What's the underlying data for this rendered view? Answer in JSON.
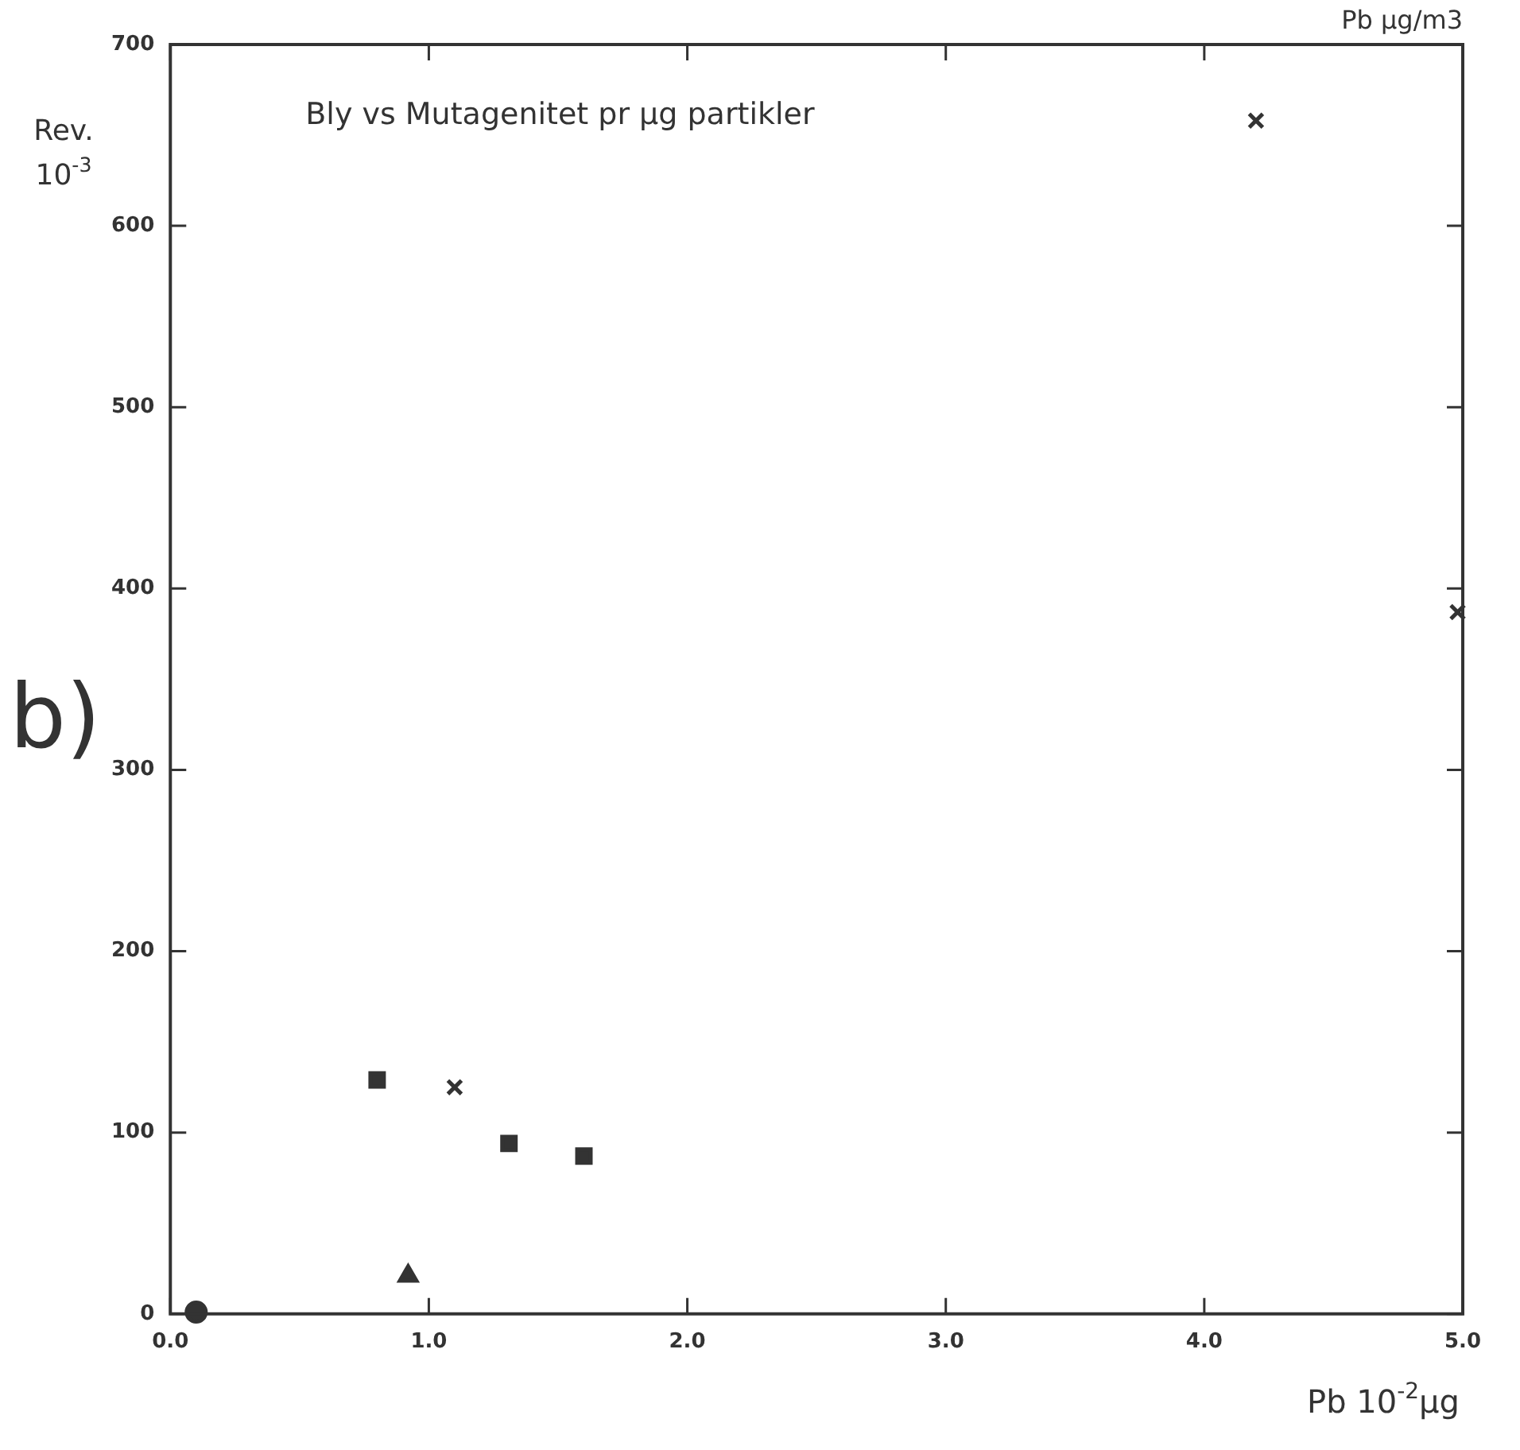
{
  "chart_data": {
    "type": "scatter",
    "title": "Bly vs Mutagenitet pr µg partikler",
    "xlabel": "Pb 10$^{-2}$µg",
    "ylabel": "Rev. 10$^{-3}$",
    "annotations": [
      "b)",
      "Pb µg/m3"
    ],
    "xlim": [
      0,
      5
    ],
    "ylim": [
      0,
      700
    ],
    "xticks": [
      {
        "value": 0,
        "label": "0.0"
      },
      {
        "value": 1,
        "label": "1.0"
      },
      {
        "value": 2,
        "label": "2.0"
      },
      {
        "value": 3,
        "label": "3.0"
      },
      {
        "value": 4,
        "label": "4.0"
      },
      {
        "value": 5,
        "label": "5.0"
      }
    ],
    "yticks": [
      0,
      100,
      200,
      300,
      400,
      500,
      600,
      700
    ],
    "grid": false,
    "legend": false,
    "series": [
      {
        "color": "#333333",
        "marker": "square",
        "x": [
          0.8,
          1.31,
          1.6
        ],
        "values": [
          129,
          94,
          87
        ]
      },
      {
        "color": "#333333",
        "marker": "cross",
        "x": [
          1.1,
          4.2,
          4.98
        ],
        "values": [
          125,
          658,
          387
        ]
      },
      {
        "color": "#333333",
        "marker": "triangle",
        "x": [
          0.92
        ],
        "values": [
          21
        ]
      },
      {
        "color": "#333333",
        "marker": "circle",
        "x": [
          0.1
        ],
        "values": [
          1
        ]
      }
    ]
  }
}
